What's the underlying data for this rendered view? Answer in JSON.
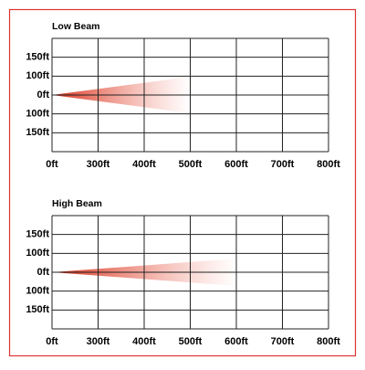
{
  "panels": [
    {
      "title": "Low Beam",
      "x_labels": [
        "0ft",
        "300ft",
        "400ft",
        "500ft",
        "600ft",
        "700ft",
        "800ft"
      ],
      "y_labels": [
        "150ft",
        "100ft",
        "0ft",
        "100ft",
        "150ft"
      ]
    },
    {
      "title": "High Beam",
      "x_labels": [
        "0ft",
        "300ft",
        "400ft",
        "500ft",
        "600ft",
        "700ft",
        "800ft"
      ],
      "y_labels": [
        "150ft",
        "100ft",
        "0ft",
        "100ft",
        "150ft"
      ]
    }
  ]
}
